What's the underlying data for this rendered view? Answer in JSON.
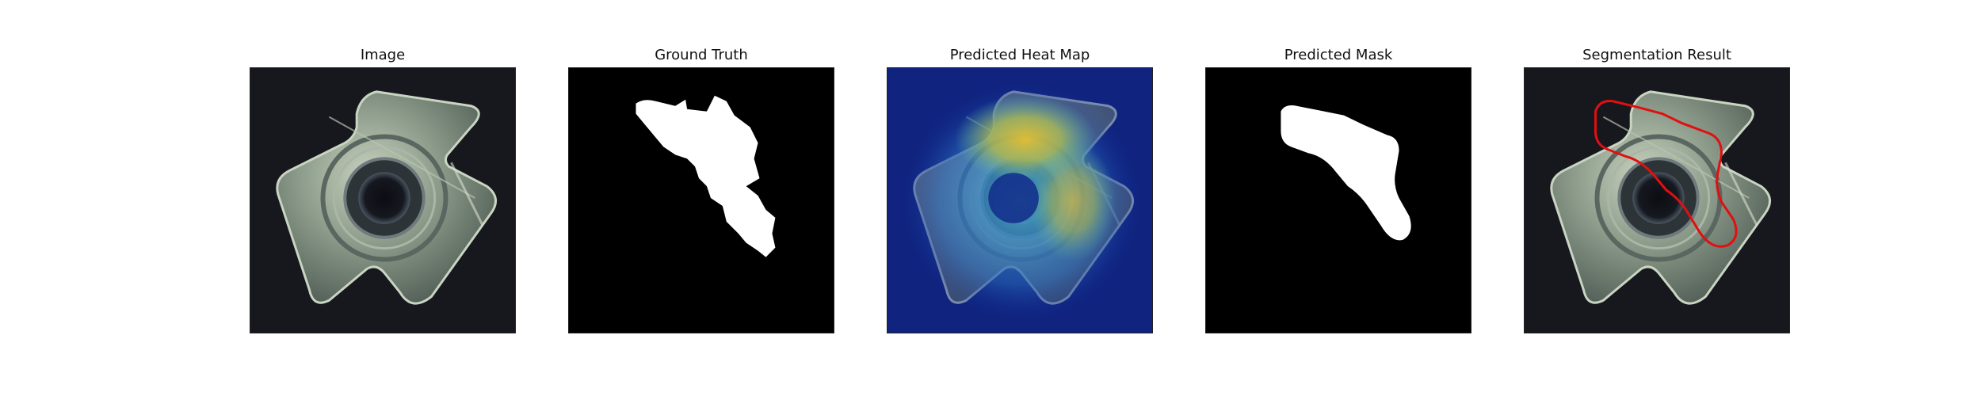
{
  "figure": {
    "panels": [
      {
        "title": "Image"
      },
      {
        "title": "Ground Truth"
      },
      {
        "title": "Predicted Heat Map"
      },
      {
        "title": "Predicted Mask"
      },
      {
        "title": "Segmentation Result"
      }
    ]
  },
  "colors": {
    "background": "#ffffff",
    "photo_bg": "#17181e",
    "metal": "#8d9c8b",
    "mask_bg": "#000000",
    "mask_fg": "#ffffff",
    "contour": "#e01010"
  }
}
